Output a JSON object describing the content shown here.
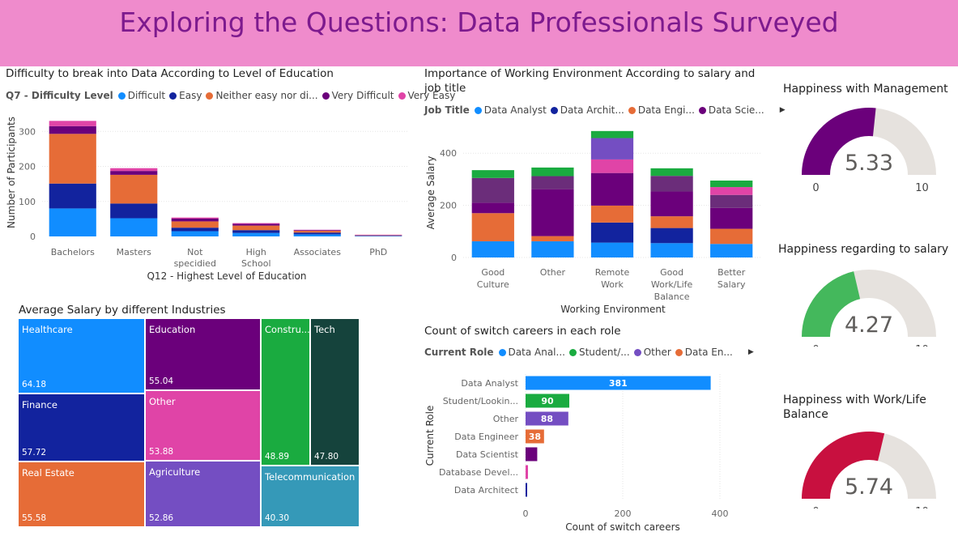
{
  "banner": {
    "title": "Exploring the Questions: Data Professionals Surveyed"
  },
  "colors": {
    "difficult": "#118dff",
    "easy": "#12239e",
    "neutral": "#e66c37",
    "very_difficult": "#6b007b",
    "very_easy": "#e044a7",
    "analyst": "#118dff",
    "architect": "#12239e",
    "engineer": "#e66c37",
    "scientist": "#6b007b",
    "student": "#1aab40",
    "other": "#744ec2",
    "gauge_track": "#e6e2de"
  },
  "edu_chart": {
    "title": "Difficulty to break into Data According to Level of Education",
    "legend_title": "Q7 - Difficulty Level",
    "legend_items": [
      "Difficult",
      "Easy",
      "Neither easy nor di...",
      "Very Difficult",
      "Very Easy"
    ],
    "ylabel": "Number of Participants",
    "xlabel": "Q12 - Highest Level of Education"
  },
  "env_chart": {
    "title": "Importance of Working Environment According to salary and job title",
    "legend_title": "Job Title",
    "legend_items": [
      "Data Analyst",
      "Data Archit...",
      "Data Engi...",
      "Data Scie..."
    ],
    "ylabel": "Average Salary",
    "xlabel": "Working Environment"
  },
  "treemap": {
    "title": "Average Salary by different Industries",
    "tiles": [
      {
        "name": "Healthcare",
        "value": "64.18"
      },
      {
        "name": "Finance",
        "value": "57.72"
      },
      {
        "name": "Real Estate",
        "value": "55.58"
      },
      {
        "name": "Education",
        "value": "55.04"
      },
      {
        "name": "Other",
        "value": "53.88"
      },
      {
        "name": "Agriculture",
        "value": "52.86"
      },
      {
        "name": "Constru...",
        "value": "48.89"
      },
      {
        "name": "Tech",
        "value": "47.80"
      },
      {
        "name": "Telecommunication",
        "value": "40.30"
      }
    ]
  },
  "switch_chart": {
    "title": "Count of switch careers in each role",
    "legend_title": "Current Role",
    "legend_items": [
      "Data Anal...",
      "Student/...",
      "Other",
      "Data En..."
    ],
    "ylabel": "Current Role",
    "xlabel": "Count of switch careers"
  },
  "gauges": [
    {
      "title": "Happiness with Management",
      "value": 5.33,
      "value_text": "5.33",
      "min": "0",
      "max": "10",
      "color": "#6b007b"
    },
    {
      "title": "Happiness regarding to salary",
      "value": 4.27,
      "value_text": "4.27",
      "min": "0",
      "max": "10",
      "color": "#44b85c"
    },
    {
      "title": "Happiness with Work/Life Balance",
      "value": 5.74,
      "value_text": "5.74",
      "min": "0",
      "max": "10",
      "color": "#c8103f"
    }
  ],
  "chart_data": [
    {
      "type": "bar",
      "title": "Difficulty to break into Data According to Level of Education",
      "xlabel": "Q12 - Highest Level of Education",
      "ylabel": "Number of Participants",
      "ylim": [
        0,
        340
      ],
      "yticks": [
        0,
        100,
        200,
        300
      ],
      "categories": [
        "Bachelors",
        "Masters",
        "Not specidied",
        "High School",
        "Associates",
        "PhD"
      ],
      "stacked": true,
      "series": [
        {
          "name": "Difficult",
          "values": [
            80,
            52,
            15,
            10,
            6,
            1
          ]
        },
        {
          "name": "Easy",
          "values": [
            71,
            42,
            10,
            8,
            5,
            1
          ]
        },
        {
          "name": "Neither easy nor di...",
          "values": [
            142,
            82,
            18,
            13,
            5,
            1
          ]
        },
        {
          "name": "Very Difficult",
          "values": [
            22,
            11,
            8,
            5,
            2,
            1
          ]
        },
        {
          "name": "Very Easy",
          "values": [
            15,
            8,
            3,
            2,
            1,
            1
          ]
        }
      ]
    },
    {
      "type": "bar",
      "title": "Importance of Working Environment According to salary and job title",
      "xlabel": "Working Environment",
      "ylabel": "Average Salary",
      "ylim": [
        0,
        500
      ],
      "yticks": [
        0,
        200,
        400
      ],
      "categories": [
        "Good Culture",
        "Other",
        "Remote Work",
        "Good Work/Life Balance",
        "Better Salary"
      ],
      "stacked": true,
      "series": [
        {
          "name": "Data Analyst",
          "values": [
            62,
            62,
            57,
            55,
            52
          ]
        },
        {
          "name": "Data Architect",
          "values": [
            0,
            0,
            77,
            58,
            0
          ]
        },
        {
          "name": "Data Engineer",
          "values": [
            108,
            20,
            65,
            45,
            58
          ]
        },
        {
          "name": "Data Scientist",
          "values": [
            40,
            180,
            125,
            95,
            80
          ]
        },
        {
          "name": "",
          "values": [
            95,
            50,
            0,
            60,
            50
          ]
        },
        {
          "name": "",
          "values": [
            0,
            0,
            52,
            0,
            30
          ]
        },
        {
          "name": "",
          "values": [
            0,
            0,
            82,
            0,
            0
          ]
        },
        {
          "name": "",
          "values": [
            30,
            33,
            27,
            29,
            25
          ]
        }
      ]
    },
    {
      "type": "bar",
      "orientation": "horizontal",
      "title": "Count of switch careers in each role",
      "xlabel": "Count of switch careers",
      "ylabel": "Current Role",
      "xlim": [
        0,
        400
      ],
      "xticks": [
        0,
        200,
        400
      ],
      "categories": [
        "Data Analyst",
        "Student/Lookin...",
        "Other",
        "Data Engineer",
        "Data Scientist",
        "Database Devel...",
        "Data Architect"
      ],
      "values": [
        381,
        90,
        88,
        38,
        24,
        5,
        3
      ],
      "data_labels": [
        "381",
        "90",
        "88",
        "38",
        "",
        "",
        ""
      ]
    }
  ]
}
